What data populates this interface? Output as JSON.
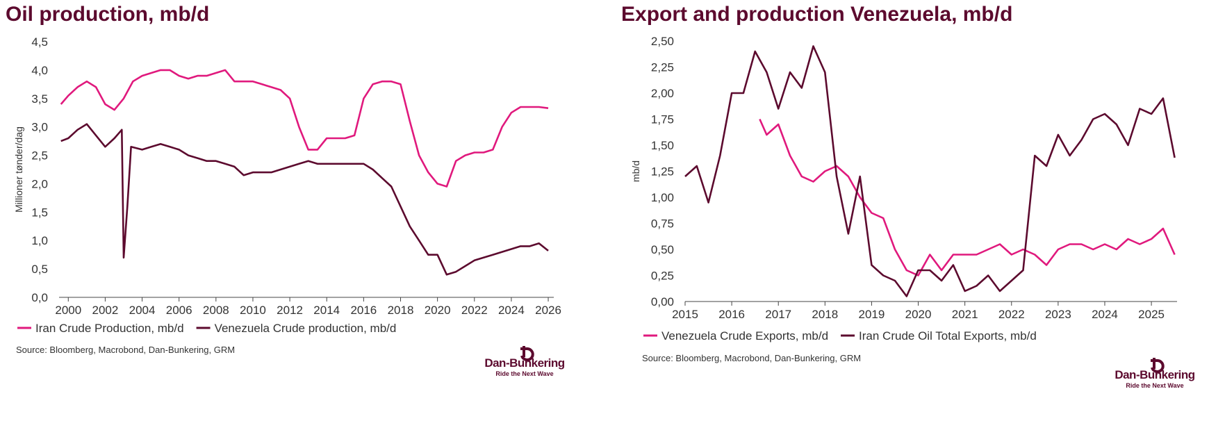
{
  "chart_data": [
    {
      "type": "line",
      "title": "Oil production, mb/d",
      "y_label": "Millioner tønder/dag",
      "xlim": [
        1999.5,
        2026.3
      ],
      "xticks": [
        2000,
        2002,
        2004,
        2006,
        2008,
        2010,
        2012,
        2014,
        2016,
        2018,
        2020,
        2022,
        2024,
        2026
      ],
      "ylim": [
        0,
        4.5
      ],
      "yticks": [
        {
          "value": 0,
          "label": "0,0"
        },
        {
          "value": 0.5,
          "label": "0,5"
        },
        {
          "value": 1,
          "label": "1,0"
        },
        {
          "value": 1.5,
          "label": "1,5"
        },
        {
          "value": 2,
          "label": "2,0"
        },
        {
          "value": 2.5,
          "label": "2,5"
        },
        {
          "value": 3,
          "label": "3,0"
        },
        {
          "value": 3.5,
          "label": "3,5"
        },
        {
          "value": 4,
          "label": "4,0"
        },
        {
          "value": 4.5,
          "label": "4,5"
        }
      ],
      "series": [
        {
          "name": "Iran Crude Production, mb/d",
          "color": "#e0197d",
          "x": [
            1999.6,
            2000,
            2000.5,
            2001,
            2001.5,
            2002,
            2002.5,
            2003,
            2003.5,
            2004,
            2004.5,
            2005,
            2005.5,
            2006,
            2006.5,
            2007,
            2007.5,
            2008,
            2008.5,
            2009,
            2009.5,
            2010,
            2010.5,
            2011,
            2011.5,
            2012,
            2012.5,
            2013,
            2013.5,
            2014,
            2014.5,
            2015,
            2015.5,
            2016,
            2016.5,
            2017,
            2017.5,
            2018,
            2018.5,
            2019,
            2019.5,
            2020,
            2020.5,
            2021,
            2021.5,
            2022,
            2022.5,
            2023,
            2023.5,
            2024,
            2024.5,
            2025,
            2025.5,
            2026
          ],
          "values": [
            3.4,
            3.55,
            3.7,
            3.8,
            3.7,
            3.4,
            3.3,
            3.5,
            3.8,
            3.9,
            3.95,
            4.0,
            4.0,
            3.9,
            3.85,
            3.9,
            3.9,
            3.95,
            4.0,
            3.8,
            3.8,
            3.8,
            3.75,
            3.7,
            3.65,
            3.5,
            3.0,
            2.6,
            2.6,
            2.8,
            2.8,
            2.8,
            2.85,
            3.5,
            3.75,
            3.8,
            3.8,
            3.75,
            3.1,
            2.5,
            2.2,
            2.0,
            1.95,
            2.4,
            2.5,
            2.55,
            2.55,
            2.6,
            3.0,
            3.25,
            3.35,
            3.35,
            3.35,
            3.33
          ]
        },
        {
          "name": "Venezuela Crude production, mb/d",
          "color": "#5c0a2e",
          "x": [
            1999.6,
            2000,
            2000.5,
            2001,
            2001.5,
            2002,
            2002.5,
            2002.9,
            2003,
            2003.2,
            2003.4,
            2004,
            2004.5,
            2005,
            2005.5,
            2006,
            2006.5,
            2007,
            2007.5,
            2008,
            2008.5,
            2009,
            2009.5,
            2010,
            2010.5,
            2011,
            2011.5,
            2012,
            2012.5,
            2013,
            2013.5,
            2014,
            2014.5,
            2015,
            2015.5,
            2016,
            2016.5,
            2017,
            2017.5,
            2018,
            2018.5,
            2019,
            2019.5,
            2020,
            2020.5,
            2021,
            2021.5,
            2022,
            2022.5,
            2023,
            2023.5,
            2024,
            2024.5,
            2025,
            2025.5,
            2026
          ],
          "values": [
            2.75,
            2.8,
            2.95,
            3.05,
            2.85,
            2.65,
            2.8,
            2.95,
            0.7,
            1.6,
            2.65,
            2.6,
            2.65,
            2.7,
            2.65,
            2.6,
            2.5,
            2.45,
            2.4,
            2.4,
            2.35,
            2.3,
            2.15,
            2.2,
            2.2,
            2.2,
            2.25,
            2.3,
            2.35,
            2.4,
            2.35,
            2.35,
            2.35,
            2.35,
            2.35,
            2.35,
            2.25,
            2.1,
            1.95,
            1.6,
            1.25,
            1.0,
            0.75,
            0.75,
            0.4,
            0.45,
            0.55,
            0.65,
            0.7,
            0.75,
            0.8,
            0.85,
            0.9,
            0.9,
            0.95,
            0.82
          ]
        }
      ],
      "source": "Source: Bloomberg, Macrobond, Dan-Bunkering, GRM",
      "logo_name": "Dan-Bunkering",
      "logo_tagline": "Ride the Next Wave"
    },
    {
      "type": "line",
      "title": "Export and production Venezuela, mb/d",
      "y_label": "mb/d",
      "xlim": [
        2015,
        2025.55
      ],
      "xticks": [
        2015,
        2016,
        2017,
        2018,
        2019,
        2020,
        2021,
        2022,
        2023,
        2024,
        2025
      ],
      "ylim": [
        0,
        2.5
      ],
      "yticks": [
        {
          "value": 0,
          "label": "0,00"
        },
        {
          "value": 0.25,
          "label": "0,25"
        },
        {
          "value": 0.5,
          "label": "0,50"
        },
        {
          "value": 0.75,
          "label": "0,75"
        },
        {
          "value": 1,
          "label": "1,00"
        },
        {
          "value": 1.25,
          "label": "1,25"
        },
        {
          "value": 1.5,
          "label": "1,50"
        },
        {
          "value": 1.75,
          "label": "1,75"
        },
        {
          "value": 2,
          "label": "2,00"
        },
        {
          "value": 2.25,
          "label": "2,25"
        },
        {
          "value": 2.5,
          "label": "2,50"
        }
      ],
      "series": [
        {
          "name": "Venezuela Crude Exports, mb/d",
          "color": "#e0197d",
          "x": [
            2016.6,
            2016.75,
            2017,
            2017.25,
            2017.5,
            2017.75,
            2018,
            2018.25,
            2018.5,
            2018.75,
            2019,
            2019.25,
            2019.5,
            2019.75,
            2020,
            2020.25,
            2020.5,
            2020.75,
            2021,
            2021.25,
            2021.5,
            2021.75,
            2022,
            2022.25,
            2022.5,
            2022.75,
            2023,
            2023.25,
            2023.5,
            2023.75,
            2024,
            2024.25,
            2024.5,
            2024.75,
            2025,
            2025.25,
            2025.5
          ],
          "values": [
            1.75,
            1.6,
            1.7,
            1.4,
            1.2,
            1.15,
            1.25,
            1.3,
            1.2,
            1.0,
            0.85,
            0.8,
            0.5,
            0.3,
            0.25,
            0.45,
            0.3,
            0.45,
            0.45,
            0.45,
            0.5,
            0.55,
            0.45,
            0.5,
            0.45,
            0.35,
            0.5,
            0.55,
            0.55,
            0.5,
            0.55,
            0.5,
            0.6,
            0.55,
            0.6,
            0.7,
            0.45
          ]
        },
        {
          "name": "Iran Crude Oil Total Exports, mb/d",
          "color": "#5c0a2e",
          "x": [
            2015,
            2015.25,
            2015.5,
            2015.75,
            2016,
            2016.25,
            2016.5,
            2016.75,
            2017,
            2017.25,
            2017.5,
            2017.75,
            2018,
            2018.25,
            2018.5,
            2018.75,
            2019,
            2019.25,
            2019.5,
            2019.75,
            2020,
            2020.25,
            2020.5,
            2020.75,
            2021,
            2021.25,
            2021.5,
            2021.75,
            2022,
            2022.25,
            2022.5,
            2022.75,
            2023,
            2023.25,
            2023.5,
            2023.75,
            2024,
            2024.25,
            2024.5,
            2024.75,
            2025,
            2025.25,
            2025.5
          ],
          "values": [
            1.2,
            1.3,
            0.95,
            1.4,
            2.0,
            2.0,
            2.4,
            2.2,
            1.85,
            2.2,
            2.05,
            2.45,
            2.2,
            1.2,
            0.65,
            1.2,
            0.35,
            0.25,
            0.2,
            0.05,
            0.3,
            0.3,
            0.2,
            0.35,
            0.1,
            0.15,
            0.25,
            0.1,
            0.2,
            0.3,
            1.4,
            1.3,
            1.6,
            1.4,
            1.55,
            1.75,
            1.8,
            1.7,
            1.5,
            1.85,
            1.8,
            1.95,
            1.38
          ]
        }
      ],
      "source": "Source: Bloomberg, Macrobond, Dan-Bunkering, GRM",
      "logo_name": "Dan-Bunkering",
      "logo_tagline": "Ride the Next Wave"
    }
  ]
}
